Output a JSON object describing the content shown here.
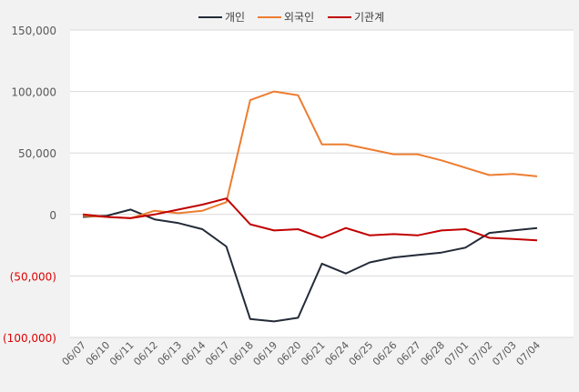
{
  "chart_data": {
    "type": "line",
    "title": "",
    "xlabel": "",
    "ylabel": "",
    "ylim": [
      -100000,
      150000
    ],
    "yticks": [
      150000,
      100000,
      50000,
      0,
      -50000,
      -100000
    ],
    "ytick_labels": [
      "150,000",
      "100,000",
      "50,000",
      "0",
      "(50,000)",
      "(100,000)"
    ],
    "negative_tick_color": "#e00000",
    "positive_tick_color": "#595959",
    "grid": true,
    "legend_position": "top",
    "categories": [
      "06/07",
      "06/10",
      "06/11",
      "06/12",
      "06/13",
      "06/14",
      "06/17",
      "06/18",
      "06/19",
      "06/20",
      "06/21",
      "06/24",
      "06/25",
      "06/26",
      "06/27",
      "06/28",
      "07/01",
      "07/02",
      "07/03",
      "07/04"
    ],
    "series": [
      {
        "name": "개인",
        "color": "#232b38",
        "values": [
          -2000,
          -1000,
          4000,
          -4000,
          -7000,
          -12000,
          -26000,
          -85000,
          -87000,
          -84000,
          -40000,
          -48000,
          -39000,
          -35000,
          -33000,
          -31000,
          -27000,
          -15000,
          -13000,
          -11000
        ]
      },
      {
        "name": "외국인",
        "color": "#ed7d31",
        "values": [
          -1000,
          -2000,
          -3000,
          3000,
          1000,
          3000,
          10000,
          93000,
          100000,
          97000,
          57000,
          57000,
          53000,
          49000,
          49000,
          44000,
          38000,
          32000,
          33000,
          31000
        ]
      },
      {
        "name": "기관계",
        "color": "#c00000",
        "values": [
          0,
          -2000,
          -3000,
          0,
          4000,
          8000,
          13000,
          -8000,
          -13000,
          -12000,
          -19000,
          -11000,
          -17000,
          -16000,
          -17000,
          -13000,
          -12000,
          -19000,
          -20000,
          -21000
        ]
      }
    ]
  }
}
